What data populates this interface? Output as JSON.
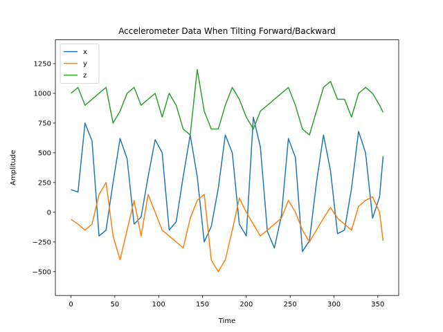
{
  "chart_data": {
    "type": "line",
    "title": "Accelerometer Data When Tilting Forward/Backward",
    "xlabel": "Time",
    "ylabel": "Amplitude",
    "xlim": [
      -17.8,
      373.8
    ],
    "ylim": [
      -700,
      1450
    ],
    "xticks": [
      0,
      50,
      100,
      150,
      200,
      250,
      300,
      350
    ],
    "yticks": [
      -500,
      -250,
      0,
      250,
      500,
      750,
      1000,
      1250
    ],
    "legend_position": "upper-left",
    "grid": false,
    "x": [
      0,
      8,
      16,
      24,
      32,
      40,
      48,
      56,
      64,
      72,
      80,
      88,
      96,
      104,
      112,
      120,
      128,
      136,
      144,
      152,
      160,
      168,
      176,
      184,
      192,
      200,
      208,
      216,
      224,
      232,
      240,
      248,
      256,
      264,
      272,
      280,
      288,
      296,
      304,
      312,
      320,
      328,
      336,
      344,
      352,
      356
    ],
    "series": [
      {
        "name": "x",
        "color": "#1f77b4",
        "values": [
          190,
          170,
          750,
          600,
          -200,
          -150,
          250,
          620,
          450,
          -100,
          -40,
          300,
          610,
          500,
          -150,
          -80,
          300,
          650,
          300,
          -250,
          -120,
          200,
          650,
          500,
          -100,
          -200,
          800,
          550,
          -160,
          -300,
          -30,
          620,
          460,
          -330,
          -240,
          250,
          650,
          350,
          -180,
          -150,
          200,
          680,
          500,
          -50,
          130,
          470
        ]
      },
      {
        "name": "y",
        "color": "#ff7f0e",
        "values": [
          -60,
          -100,
          -150,
          -100,
          150,
          250,
          -200,
          -400,
          -150,
          100,
          -200,
          150,
          0,
          -150,
          -200,
          -250,
          -300,
          -50,
          100,
          150,
          -400,
          -500,
          -400,
          -150,
          120,
          0,
          -100,
          -200,
          -150,
          -100,
          -50,
          100,
          0,
          -150,
          -250,
          -150,
          -50,
          40,
          -50,
          -100,
          -150,
          50,
          100,
          130,
          0,
          -240
        ]
      },
      {
        "name": "z",
        "color": "#2ca02c",
        "values": [
          1000,
          1050,
          900,
          950,
          1000,
          1050,
          750,
          850,
          1000,
          1050,
          900,
          950,
          1000,
          800,
          1000,
          900,
          700,
          650,
          1200,
          850,
          700,
          700,
          900,
          1050,
          950,
          800,
          700,
          850,
          900,
          950,
          1000,
          1050,
          900,
          700,
          650,
          850,
          1050,
          1100,
          950,
          950,
          800,
          1000,
          1050,
          1000,
          900,
          840
        ]
      }
    ]
  }
}
